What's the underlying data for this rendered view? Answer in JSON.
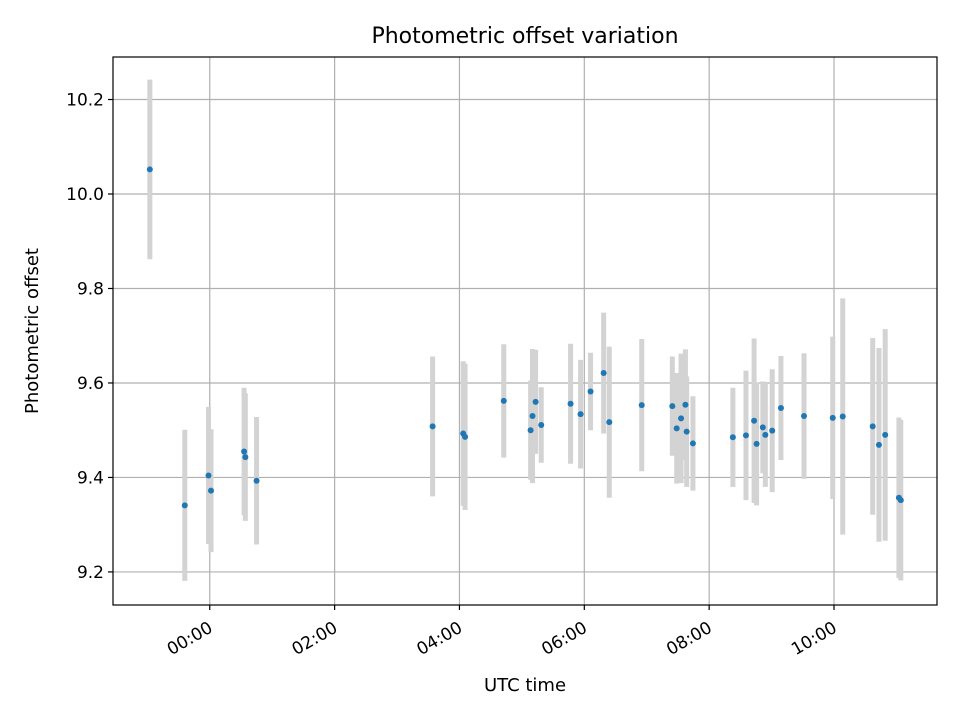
{
  "chart_data": {
    "type": "scatter",
    "title": "Photometric offset variation",
    "xlabel": "UTC time",
    "ylabel": "Photometric offset",
    "x_unit": "hours (UTC, relative to 00:00)",
    "xlim": [
      -1.55,
      11.65
    ],
    "ylim": [
      9.13,
      10.29
    ],
    "xticks": [
      {
        "value": 0,
        "label": "00:00"
      },
      {
        "value": 2,
        "label": "02:00"
      },
      {
        "value": 4,
        "label": "04:00"
      },
      {
        "value": 6,
        "label": "06:00"
      },
      {
        "value": 8,
        "label": "08:00"
      },
      {
        "value": 10,
        "label": "10:00"
      }
    ],
    "yticks": [
      {
        "value": 9.2,
        "label": "9.2"
      },
      {
        "value": 9.4,
        "label": "9.4"
      },
      {
        "value": 9.6,
        "label": "9.6"
      },
      {
        "value": 9.8,
        "label": "9.8"
      },
      {
        "value": 10.0,
        "label": "10.0"
      },
      {
        "value": 10.2,
        "label": "10.2"
      }
    ],
    "grid": true,
    "colors": {
      "point": "#1f77b4",
      "errorbar": "#d3d3d3",
      "grid": "#b0b0b0"
    },
    "series": [
      {
        "points": [
          {
            "x": -0.96,
            "y": 10.052,
            "err": 0.19
          },
          {
            "x": -0.4,
            "y": 9.341,
            "err": 0.16
          },
          {
            "x": -0.02,
            "y": 9.404,
            "err": 0.145
          },
          {
            "x": 0.02,
            "y": 9.372,
            "err": 0.13
          },
          {
            "x": 0.55,
            "y": 9.455,
            "err": 0.135
          },
          {
            "x": 0.57,
            "y": 9.443,
            "err": 0.135
          },
          {
            "x": 0.75,
            "y": 9.393,
            "err": 0.135
          },
          {
            "x": 3.57,
            "y": 9.508,
            "err": 0.148
          },
          {
            "x": 4.06,
            "y": 9.493,
            "err": 0.153
          },
          {
            "x": 4.09,
            "y": 9.486,
            "err": 0.155
          },
          {
            "x": 4.71,
            "y": 9.562,
            "err": 0.12
          },
          {
            "x": 5.14,
            "y": 9.5,
            "err": 0.105
          },
          {
            "x": 5.17,
            "y": 9.53,
            "err": 0.142
          },
          {
            "x": 5.22,
            "y": 9.56,
            "err": 0.11
          },
          {
            "x": 5.31,
            "y": 9.511,
            "err": 0.08
          },
          {
            "x": 5.78,
            "y": 9.556,
            "err": 0.127
          },
          {
            "x": 5.94,
            "y": 9.534,
            "err": 0.115
          },
          {
            "x": 6.1,
            "y": 9.582,
            "err": 0.082
          },
          {
            "x": 6.31,
            "y": 9.621,
            "err": 0.128
          },
          {
            "x": 6.4,
            "y": 9.517,
            "err": 0.16
          },
          {
            "x": 6.92,
            "y": 9.553,
            "err": 0.14
          },
          {
            "x": 7.41,
            "y": 9.551,
            "err": 0.105
          },
          {
            "x": 7.48,
            "y": 9.504,
            "err": 0.117
          },
          {
            "x": 7.55,
            "y": 9.525,
            "err": 0.137
          },
          {
            "x": 7.62,
            "y": 9.554,
            "err": 0.117
          },
          {
            "x": 7.64,
            "y": 9.497,
            "err": 0.117
          },
          {
            "x": 7.74,
            "y": 9.472,
            "err": 0.1
          },
          {
            "x": 8.38,
            "y": 9.485,
            "err": 0.105
          },
          {
            "x": 8.59,
            "y": 9.489,
            "err": 0.137
          },
          {
            "x": 8.72,
            "y": 9.52,
            "err": 0.174
          },
          {
            "x": 8.76,
            "y": 9.471,
            "err": 0.13
          },
          {
            "x": 8.86,
            "y": 9.506,
            "err": 0.097
          },
          {
            "x": 8.9,
            "y": 9.49,
            "err": 0.11
          },
          {
            "x": 9.01,
            "y": 9.499,
            "err": 0.13
          },
          {
            "x": 9.15,
            "y": 9.547,
            "err": 0.11
          },
          {
            "x": 9.52,
            "y": 9.53,
            "err": 0.133
          },
          {
            "x": 9.98,
            "y": 9.526,
            "err": 0.172
          },
          {
            "x": 10.14,
            "y": 9.529,
            "err": 0.25
          },
          {
            "x": 10.62,
            "y": 9.508,
            "err": 0.187
          },
          {
            "x": 10.72,
            "y": 9.469,
            "err": 0.205
          },
          {
            "x": 10.82,
            "y": 9.49,
            "err": 0.224
          },
          {
            "x": 11.04,
            "y": 9.357,
            "err": 0.17
          },
          {
            "x": 11.07,
            "y": 9.352,
            "err": 0.17
          }
        ]
      }
    ]
  }
}
